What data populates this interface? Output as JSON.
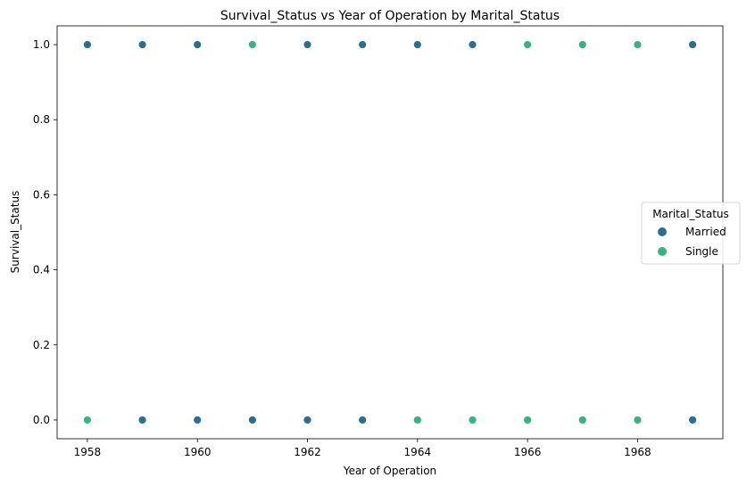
{
  "chart_data": {
    "type": "scatter",
    "title": "Survival_Status vs Year of Operation by Marital_Status",
    "xlabel": "Year of Operation",
    "ylabel": "Survival_Status",
    "xlim": [
      1957.45,
      1969.55
    ],
    "ylim": [
      -0.05,
      1.05
    ],
    "xticks": [
      1958,
      1960,
      1962,
      1964,
      1966,
      1968
    ],
    "yticks": [
      0.0,
      0.2,
      0.4,
      0.6,
      0.8,
      1.0
    ],
    "ytick_labels": [
      "0.0",
      "0.2",
      "0.4",
      "0.6",
      "0.8",
      "1.0"
    ],
    "grid": false,
    "legend": {
      "title": "Marital_Status",
      "placement": "center-right",
      "entries": [
        "Married",
        "Single"
      ]
    },
    "series": [
      {
        "name": "Married",
        "color": "#2c6e8e",
        "x": [
          1958,
          1959,
          1960,
          1962,
          1963,
          1964,
          1965,
          1969,
          1958,
          1959,
          1960,
          1961,
          1962,
          1963,
          1969
        ],
        "y": [
          1,
          1,
          1,
          1,
          1,
          1,
          1,
          1,
          0,
          0,
          0,
          0,
          0,
          0,
          0
        ]
      },
      {
        "name": "Single",
        "color": "#36b37e",
        "x": [
          1961,
          1966,
          1967,
          1968,
          1958,
          1964,
          1965,
          1966,
          1967,
          1968
        ],
        "y": [
          1,
          1,
          1,
          1,
          0,
          0,
          0,
          0,
          0,
          0
        ]
      }
    ]
  }
}
